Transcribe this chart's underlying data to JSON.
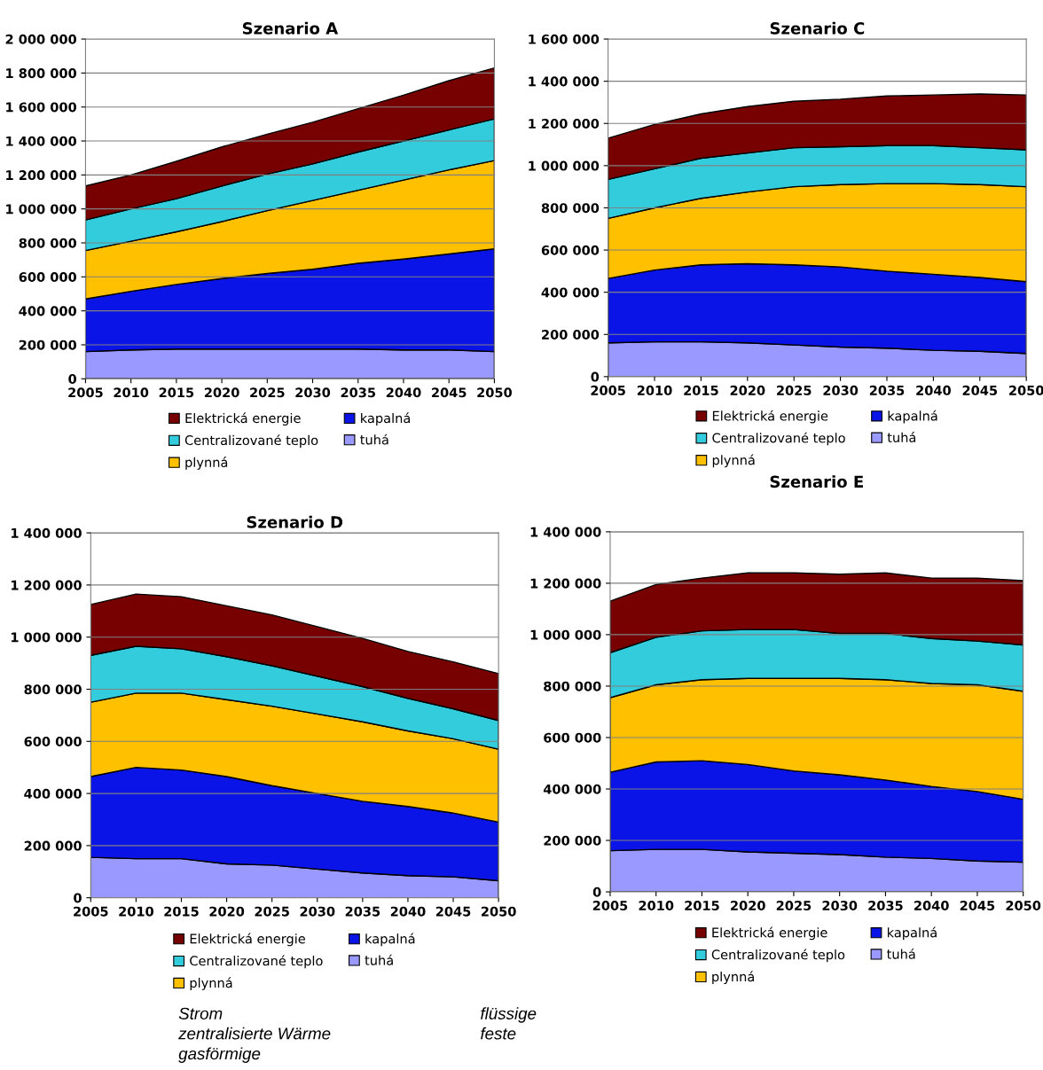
{
  "chart_data": [
    {
      "type": "area",
      "stacked": true,
      "title": "Szenario A",
      "x": [
        2005,
        2010,
        2015,
        2020,
        2025,
        2030,
        2035,
        2040,
        2045,
        2050
      ],
      "xlim": [
        2005,
        2050
      ],
      "xticks": [
        2005,
        2010,
        2015,
        2020,
        2025,
        2030,
        2035,
        2040,
        2045,
        2050
      ],
      "ylim": [
        0,
        2000000
      ],
      "yticks": [
        0,
        {
          "value": 200000,
          "label": "200 000"
        },
        {
          "value": 400000,
          "label": "400 000"
        },
        {
          "value": 600000,
          "label": "600 000"
        },
        {
          "value": 800000,
          "label": "800 000"
        },
        {
          "value": 1000000,
          "label": "1 000 000"
        },
        {
          "value": 1200000,
          "label": "1 200 000"
        },
        {
          "value": 1400000,
          "label": "1 400 000"
        },
        {
          "value": 1600000,
          "label": "1 600 000"
        },
        {
          "value": 1800000,
          "label": "1 800 000"
        },
        {
          "value": 2000000,
          "label": "2 000 000"
        }
      ],
      "grid": "y",
      "legend": "bottom",
      "series": [
        {
          "name": "tuhá",
          "color": "#9999ff",
          "values": [
            160000,
            170000,
            175000,
            175000,
            175000,
            175000,
            175000,
            170000,
            170000,
            160000
          ]
        },
        {
          "name": "kapalná",
          "color": "#0a14e6",
          "values": [
            310000,
            345000,
            380000,
            415000,
            445000,
            470000,
            505000,
            535000,
            565000,
            605000
          ]
        },
        {
          "name": "plynná",
          "color": "#ffc000",
          "values": [
            285000,
            295000,
            310000,
            335000,
            370000,
            405000,
            430000,
            465000,
            495000,
            520000
          ]
        },
        {
          "name": "Centralizované teplo",
          "color": "#33ccdd",
          "values": [
            180000,
            190000,
            195000,
            210000,
            215000,
            215000,
            225000,
            230000,
            235000,
            245000
          ]
        },
        {
          "name": "Elektrická energie",
          "color": "#770000",
          "values": [
            200000,
            200000,
            220000,
            230000,
            235000,
            245000,
            255000,
            270000,
            290000,
            300000
          ]
        }
      ]
    },
    {
      "type": "area",
      "stacked": true,
      "title": "Szenario C",
      "x": [
        2005,
        2010,
        2015,
        2020,
        2025,
        2030,
        2035,
        2040,
        2045,
        2050
      ],
      "xlim": [
        2005,
        2050
      ],
      "xticks": [
        2005,
        2010,
        2015,
        2020,
        2025,
        2030,
        2035,
        2040,
        2045,
        2050
      ],
      "ylim": [
        0,
        1600000
      ],
      "yticks": [
        0,
        {
          "value": 200000,
          "label": "200 000"
        },
        {
          "value": 400000,
          "label": "400 000"
        },
        {
          "value": 600000,
          "label": "600 000"
        },
        {
          "value": 800000,
          "label": "800 000"
        },
        {
          "value": 1000000,
          "label": "1 000 000"
        },
        {
          "value": 1200000,
          "label": "1 200 000"
        },
        {
          "value": 1400000,
          "label": "1 400 000"
        },
        {
          "value": 1600000,
          "label": "1 600 000"
        }
      ],
      "grid": "y",
      "legend": "bottom",
      "series": [
        {
          "name": "tuhá",
          "color": "#9999ff",
          "values": [
            160000,
            165000,
            165000,
            160000,
            150000,
            140000,
            135000,
            125000,
            120000,
            110000
          ]
        },
        {
          "name": "kapalná",
          "color": "#0a14e6",
          "values": [
            305000,
            340000,
            365000,
            375000,
            380000,
            380000,
            365000,
            360000,
            350000,
            340000
          ]
        },
        {
          "name": "plynná",
          "color": "#ffc000",
          "values": [
            285000,
            295000,
            315000,
            340000,
            370000,
            390000,
            415000,
            430000,
            440000,
            450000
          ]
        },
        {
          "name": "Centralizované teplo",
          "color": "#33ccdd",
          "values": [
            185000,
            185000,
            190000,
            185000,
            185000,
            180000,
            180000,
            180000,
            175000,
            175000
          ]
        },
        {
          "name": "Elektrická energie",
          "color": "#770000",
          "values": [
            195000,
            210000,
            210000,
            220000,
            220000,
            225000,
            235000,
            240000,
            255000,
            260000
          ]
        }
      ]
    },
    {
      "type": "area",
      "stacked": true,
      "title": "Szenario D",
      "x": [
        2005,
        2010,
        2015,
        2020,
        2025,
        2030,
        2035,
        2040,
        2045,
        2050
      ],
      "xlim": [
        2005,
        2050
      ],
      "xticks": [
        2005,
        2010,
        2015,
        2020,
        2025,
        2030,
        2035,
        2040,
        2045,
        2050
      ],
      "ylim": [
        0,
        1400000
      ],
      "yticks": [
        0,
        {
          "value": 200000,
          "label": "200 000"
        },
        {
          "value": 400000,
          "label": "400 000"
        },
        {
          "value": 600000,
          "label": "600 000"
        },
        {
          "value": 800000,
          "label": "800 000"
        },
        {
          "value": 1000000,
          "label": "1 000 000"
        },
        {
          "value": 1200000,
          "label": "1 200 000"
        },
        {
          "value": 1400000,
          "label": "1 400 000"
        }
      ],
      "grid": "y",
      "legend": "bottom",
      "annotations": [
        "Strom",
        "zentralisierte Wärme",
        "gasförmige",
        "flüssige",
        "feste"
      ],
      "series": [
        {
          "name": "tuhá",
          "color": "#9999ff",
          "values": [
            155000,
            150000,
            150000,
            130000,
            125000,
            110000,
            95000,
            85000,
            80000,
            65000
          ]
        },
        {
          "name": "kapalná",
          "color": "#0a14e6",
          "values": [
            310000,
            350000,
            340000,
            335000,
            305000,
            290000,
            275000,
            265000,
            245000,
            225000
          ]
        },
        {
          "name": "plynná",
          "color": "#ffc000",
          "values": [
            285000,
            285000,
            295000,
            295000,
            305000,
            305000,
            305000,
            290000,
            285000,
            280000
          ]
        },
        {
          "name": "Centralizované teplo",
          "color": "#33ccdd",
          "values": [
            180000,
            180000,
            170000,
            165000,
            155000,
            145000,
            135000,
            125000,
            115000,
            110000
          ]
        },
        {
          "name": "Elektrická energie",
          "color": "#770000",
          "values": [
            195000,
            200000,
            200000,
            195000,
            195000,
            190000,
            185000,
            180000,
            180000,
            180000
          ]
        }
      ]
    },
    {
      "type": "area",
      "stacked": true,
      "title": "Szenario E",
      "x": [
        2005,
        2010,
        2015,
        2020,
        2025,
        2030,
        2035,
        2040,
        2045,
        2050
      ],
      "xlim": [
        2005,
        2050
      ],
      "xticks": [
        2005,
        2010,
        2015,
        2020,
        2025,
        2030,
        2035,
        2040,
        2045,
        2050
      ],
      "ylim": [
        0,
        1400000
      ],
      "yticks": [
        0,
        {
          "value": 200000,
          "label": "200 000"
        },
        {
          "value": 400000,
          "label": "400 000"
        },
        {
          "value": 600000,
          "label": "600 000"
        },
        {
          "value": 800000,
          "label": "800 000"
        },
        {
          "value": 1000000,
          "label": "1 000 000"
        },
        {
          "value": 1200000,
          "label": "1 200 000"
        },
        {
          "value": 1400000,
          "label": "1 400 000"
        }
      ],
      "grid": "y",
      "legend": "bottom",
      "series": [
        {
          "name": "tuhá",
          "color": "#9999ff",
          "values": [
            160000,
            165000,
            165000,
            155000,
            150000,
            145000,
            135000,
            130000,
            120000,
            115000
          ]
        },
        {
          "name": "kapalná",
          "color": "#0a14e6",
          "values": [
            305000,
            340000,
            345000,
            340000,
            320000,
            310000,
            300000,
            280000,
            270000,
            245000
          ]
        },
        {
          "name": "plynná",
          "color": "#ffc000",
          "values": [
            290000,
            300000,
            315000,
            335000,
            360000,
            375000,
            390000,
            400000,
            415000,
            420000
          ]
        },
        {
          "name": "Centralizované teplo",
          "color": "#33ccdd",
          "values": [
            175000,
            185000,
            190000,
            190000,
            190000,
            175000,
            180000,
            175000,
            170000,
            180000
          ]
        },
        {
          "name": "Elektrická energie",
          "color": "#770000",
          "values": [
            200000,
            205000,
            205000,
            220000,
            220000,
            230000,
            235000,
            235000,
            245000,
            250000
          ]
        }
      ]
    }
  ]
}
